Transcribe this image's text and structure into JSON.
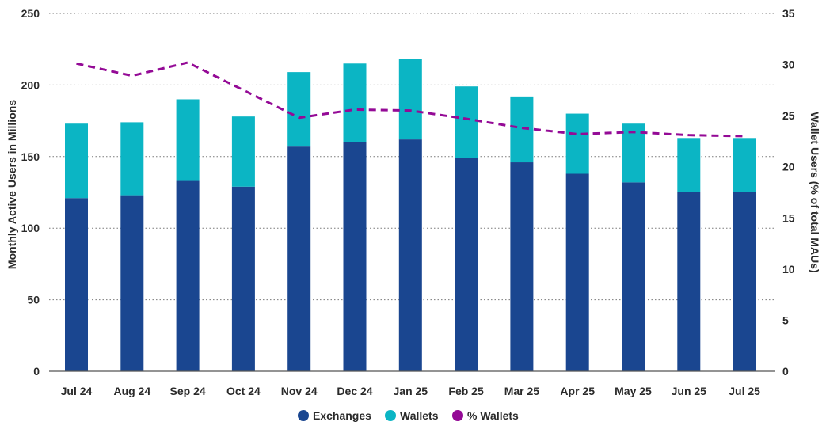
{
  "chart_data": {
    "type": "bar",
    "stacked": true,
    "categories": [
      "Jul 24",
      "Aug 24",
      "Sep 24",
      "Oct 24",
      "Nov 24",
      "Dec 24",
      "Jan 25",
      "Feb 25",
      "Mar 25",
      "Apr 25",
      "May 25",
      "Jun 25",
      "Jul 25"
    ],
    "series": [
      {
        "name": "Exchanges",
        "type": "bar",
        "axis": "left",
        "color": "#1a4690",
        "values": [
          121,
          123,
          133,
          129,
          157,
          160,
          162,
          149,
          146,
          138,
          132,
          125,
          125
        ]
      },
      {
        "name": "Wallets",
        "type": "bar",
        "axis": "left",
        "color": "#0bb5c4",
        "values": [
          52,
          51,
          57,
          49,
          52,
          55,
          56,
          50,
          46,
          42,
          41,
          38,
          38
        ]
      },
      {
        "name": "% Wallets",
        "type": "line",
        "style": "dashed",
        "axis": "right",
        "color": "#940a96",
        "values": [
          30.1,
          28.9,
          30.2,
          27.5,
          24.8,
          25.6,
          25.5,
          24.7,
          23.8,
          23.2,
          23.4,
          23.1,
          23.0
        ]
      }
    ],
    "ylabel": "Monthly Active Users in Millions",
    "ylim": [
      0,
      250
    ],
    "yticks": [
      "0",
      "50",
      "100",
      "150",
      "200",
      "250"
    ],
    "y2label": "Wallet Users (% of total MAUs)",
    "y2lim": [
      0,
      35
    ],
    "y2ticks": [
      "0",
      "5",
      "10",
      "15",
      "20",
      "25",
      "30",
      "35"
    ],
    "grid": true,
    "legend_position": "bottom-center"
  }
}
